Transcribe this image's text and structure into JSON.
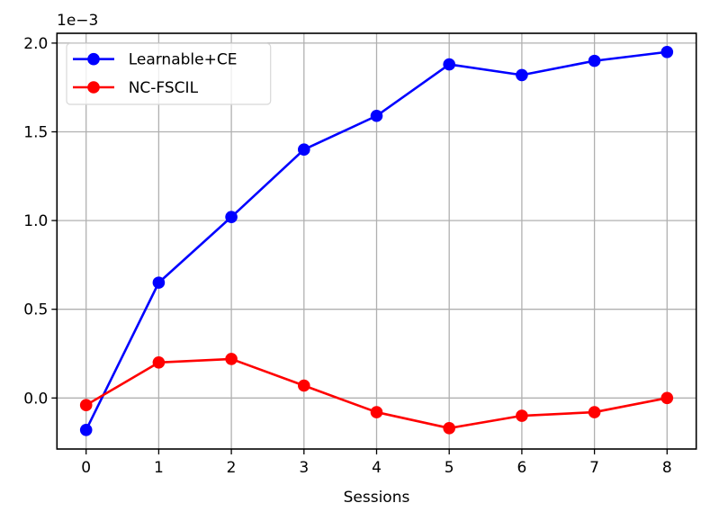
{
  "chart_data": {
    "type": "line",
    "title": "",
    "xlabel": "Sessions",
    "ylabel": "",
    "y_offset_label": "1e−3",
    "x": [
      0,
      1,
      2,
      3,
      4,
      5,
      6,
      7,
      8
    ],
    "xticks": [
      "0",
      "1",
      "2",
      "3",
      "4",
      "5",
      "6",
      "7",
      "8"
    ],
    "yticks": [
      "0.0",
      "0.5",
      "1.0",
      "1.5",
      "2.0"
    ],
    "ytick_values": [
      0.0,
      0.5,
      1.0,
      1.5,
      2.0
    ],
    "ylim": [
      -0.29,
      2.06
    ],
    "xlim": [
      -0.4,
      8.4
    ],
    "grid": true,
    "legend_position": "upper left",
    "series": [
      {
        "name": "Learnable+CE",
        "color": "#0000ff",
        "marker": "circle",
        "values": [
          -0.18,
          0.65,
          1.02,
          1.4,
          1.59,
          1.88,
          1.82,
          1.9,
          1.95
        ]
      },
      {
        "name": "NC-FSCIL",
        "color": "#ff0000",
        "marker": "circle",
        "values": [
          -0.04,
          0.2,
          0.22,
          0.07,
          -0.08,
          -0.17,
          -0.1,
          -0.08,
          0.0
        ]
      }
    ]
  }
}
